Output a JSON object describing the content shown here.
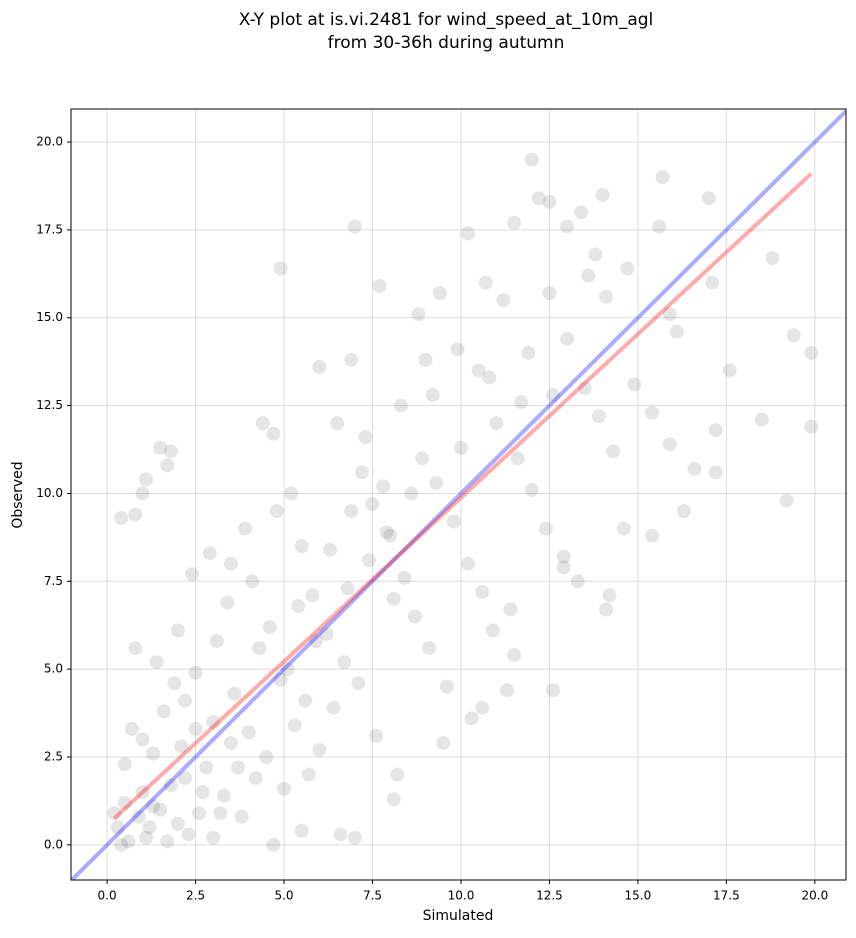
{
  "chart_data": {
    "type": "scatter",
    "title": [
      "X-Y plot at is.vi.2481 for wind_speed_at_10m_agl",
      "from 30-36h during autumn"
    ],
    "x_label": "Simulated",
    "y_label": "Observed",
    "xlim": [
      -1.02,
      20.88
    ],
    "ylim": [
      -1.0,
      20.94
    ],
    "xticks": [
      {
        "value": 0,
        "label": "0.0"
      },
      2.5,
      {
        "value": 5,
        "label": "5.0"
      },
      7.5,
      {
        "value": 10,
        "label": "10.0"
      },
      12.5,
      {
        "value": 15,
        "label": "15.0"
      },
      17.5,
      {
        "value": 20,
        "label": "20.0"
      }
    ],
    "yticks": [
      {
        "value": 0,
        "label": "0.0"
      },
      2.5,
      {
        "value": 5,
        "label": "5.0"
      },
      7.5,
      {
        "value": 10,
        "label": "10.0"
      },
      12.5,
      {
        "value": 15,
        "label": "15.0"
      },
      17.5,
      {
        "value": 20,
        "label": "20.0"
      }
    ],
    "grid": true,
    "series": [
      {
        "color": "#000000",
        "x": [
          0.4,
          0.8,
          1.0,
          1.1,
          1.5,
          1.8,
          1.7,
          4.9,
          7.0,
          12.0,
          12.2,
          12.5,
          13.0,
          13.4,
          14.0,
          15.6,
          15.7,
          17.0,
          18.8,
          19.9,
          19.4,
          19.2,
          19.9,
          18.5,
          17.2,
          16.3,
          15.4,
          14.6,
          14.2,
          14.1,
          12.6,
          12.9,
          11.3,
          11.5,
          10.6,
          10.3,
          9.5,
          8.1,
          8.2,
          7.0,
          6.6,
          5.5,
          4.7,
          0.6,
          1.2,
          0.9,
          1.5,
          2.0,
          2.3,
          1.0,
          0.5,
          1.3,
          1.8,
          2.6,
          3.0,
          3.3,
          2.8,
          0.7,
          1.6,
          2.2,
          3.5,
          3.8,
          4.2,
          0.8,
          1.4,
          2.0,
          2.5,
          3.1,
          3.6,
          4.0,
          4.5,
          5.0,
          5.3,
          2.4,
          2.9,
          3.4,
          4.1,
          4.6,
          5.1,
          5.6,
          6.0,
          6.4,
          3.9,
          4.4,
          4.7,
          5.2,
          5.5,
          5.8,
          6.2,
          6.7,
          7.1,
          7.6,
          6.0,
          6.5,
          6.9,
          7.3,
          7.8,
          7.5,
          8.0,
          8.4,
          8.7,
          9.1,
          9.6,
          7.7,
          8.8,
          9.4,
          9.9,
          8.3,
          8.9,
          9.3,
          9.8,
          10.2,
          10.6,
          10.9,
          11.4,
          10.2,
          10.7,
          11.5,
          11.2,
          10.5,
          11.0,
          11.6,
          12.0,
          12.4,
          12.9,
          13.3,
          12.5,
          13.0,
          13.5,
          13.9,
          14.3,
          14.9,
          15.4,
          15.9,
          16.6,
          17.2,
          17.6,
          16.1,
          17.1,
          15.9,
          14.7,
          14.1,
          13.6,
          11.9,
          12.6,
          6.9,
          7.4,
          8.1,
          3.0,
          2.1,
          1.1,
          0.3,
          0.5,
          1.7,
          2.7,
          3.7,
          4.9,
          5.9,
          6.8,
          7.9,
          8.6,
          9.2,
          10.0,
          10.8,
          11.7,
          0.2,
          1.9,
          2.5,
          4.3,
          5.4,
          6.3,
          7.2,
          0.4,
          1.3,
          2.2,
          3.2,
          1.0,
          5.7,
          3.5,
          4.8,
          9.0,
          13.8
        ],
        "values": [
          9.3,
          9.4,
          10.0,
          10.4,
          11.3,
          11.2,
          10.8,
          16.4,
          17.6,
          19.5,
          18.4,
          18.3,
          17.6,
          18.0,
          18.5,
          17.6,
          19.0,
          18.4,
          16.7,
          14.0,
          14.5,
          9.8,
          11.9,
          12.1,
          10.6,
          9.5,
          8.8,
          9.0,
          7.1,
          6.7,
          4.4,
          7.9,
          4.4,
          5.4,
          3.9,
          3.6,
          2.9,
          1.3,
          2.0,
          0.2,
          0.3,
          0.4,
          0.0,
          0.1,
          0.5,
          0.8,
          1.0,
          0.6,
          0.3,
          1.5,
          2.3,
          2.6,
          1.7,
          0.9,
          0.2,
          1.4,
          2.2,
          3.3,
          3.8,
          4.1,
          2.9,
          0.8,
          1.9,
          5.6,
          5.2,
          6.1,
          4.9,
          5.8,
          4.3,
          3.2,
          2.5,
          1.6,
          3.4,
          7.7,
          8.3,
          6.9,
          7.5,
          6.2,
          5.0,
          4.1,
          2.7,
          3.9,
          9.0,
          12.0,
          11.7,
          10.0,
          8.5,
          7.1,
          6.0,
          5.2,
          4.6,
          3.1,
          13.6,
          12.0,
          13.8,
          11.6,
          10.2,
          9.7,
          8.8,
          7.6,
          6.5,
          5.6,
          4.5,
          15.9,
          15.1,
          15.7,
          14.1,
          12.5,
          11.0,
          10.3,
          9.2,
          8.0,
          7.2,
          6.1,
          6.7,
          17.4,
          16.0,
          17.7,
          15.5,
          13.5,
          12.0,
          11.0,
          10.1,
          9.0,
          8.2,
          7.5,
          15.7,
          14.4,
          13.0,
          12.2,
          11.2,
          13.1,
          12.3,
          11.4,
          10.7,
          11.8,
          13.5,
          14.6,
          16.0,
          15.1,
          16.4,
          15.6,
          16.2,
          14.0,
          12.8,
          9.5,
          8.1,
          7.0,
          3.5,
          2.8,
          0.2,
          0.5,
          1.2,
          0.1,
          1.5,
          2.2,
          4.7,
          5.8,
          7.3,
          8.9,
          10.0,
          12.8,
          11.3,
          13.3,
          12.6,
          0.9,
          4.6,
          3.3,
          5.6,
          6.8,
          8.4,
          10.6,
          0.0,
          1.1,
          1.9,
          0.9,
          3.0,
          2.0,
          8.0,
          9.5,
          13.8,
          16.8
        ]
      }
    ],
    "lines": [
      {
        "color": "#0000ff",
        "x": [
          -1.02,
          20.88
        ],
        "y": [
          -1.02,
          20.88
        ]
      },
      {
        "color": "#ff0000",
        "x": [
          0.2,
          19.9
        ],
        "y": [
          0.75,
          19.1
        ]
      }
    ]
  }
}
